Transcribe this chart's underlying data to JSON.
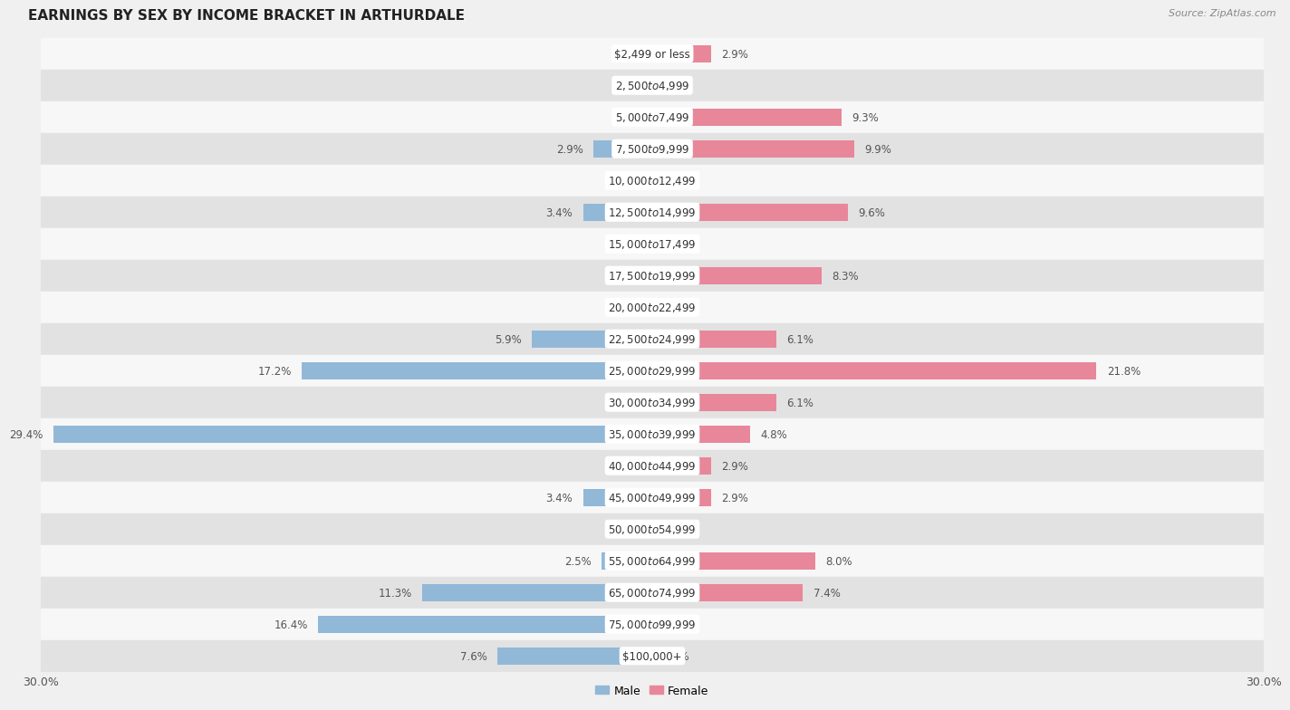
{
  "title": "EARNINGS BY SEX BY INCOME BRACKET IN ARTHURDALE",
  "source": "Source: ZipAtlas.com",
  "categories": [
    "$2,499 or less",
    "$2,500 to $4,999",
    "$5,000 to $7,499",
    "$7,500 to $9,999",
    "$10,000 to $12,499",
    "$12,500 to $14,999",
    "$15,000 to $17,499",
    "$17,500 to $19,999",
    "$20,000 to $22,499",
    "$22,500 to $24,999",
    "$25,000 to $29,999",
    "$30,000 to $34,999",
    "$35,000 to $39,999",
    "$40,000 to $44,999",
    "$45,000 to $49,999",
    "$50,000 to $54,999",
    "$55,000 to $64,999",
    "$65,000 to $74,999",
    "$75,000 to $99,999",
    "$100,000+"
  ],
  "male": [
    0.0,
    0.0,
    0.0,
    2.9,
    0.0,
    3.4,
    0.0,
    0.0,
    0.0,
    5.9,
    17.2,
    0.0,
    29.4,
    0.0,
    3.4,
    0.0,
    2.5,
    11.3,
    16.4,
    7.6
  ],
  "female": [
    2.9,
    0.0,
    9.3,
    9.9,
    0.0,
    9.6,
    0.0,
    8.3,
    0.0,
    6.1,
    21.8,
    6.1,
    4.8,
    2.9,
    2.9,
    0.0,
    8.0,
    7.4,
    0.0,
    0.0
  ],
  "male_color": "#92b8d8",
  "female_color": "#e8879a",
  "male_label": "Male",
  "female_label": "Female",
  "background_color": "#f0f0f0",
  "row_bg_light": "#f7f7f7",
  "row_bg_dark": "#e2e2e2",
  "x_max": 30.0,
  "title_fontsize": 11,
  "label_fontsize": 8.5,
  "value_fontsize": 8.5,
  "bar_height": 0.55,
  "cat_label_fontsize": 8.5,
  "cat_box_color": "#ffffff",
  "cat_text_color": "#333333",
  "value_text_color": "#555555"
}
